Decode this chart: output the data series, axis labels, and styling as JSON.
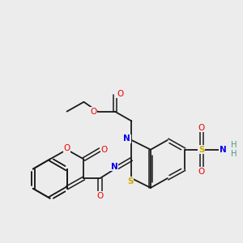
{
  "background_color": "#ececec",
  "atom_colors": {
    "C": "#1a1a1a",
    "N": "#0000ee",
    "O": "#ee0000",
    "S": "#ccaa00",
    "H": "#4a9a88"
  },
  "bond_color": "#1a1a1a",
  "figsize": [
    3.0,
    3.0
  ],
  "dpi": 100
}
